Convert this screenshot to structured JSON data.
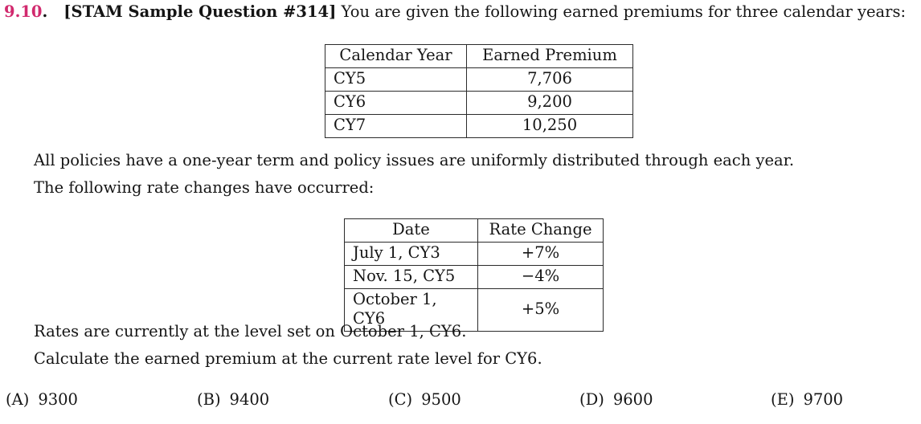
{
  "question": {
    "number": "9.10",
    "number_dot": ".",
    "source_tag": "[STAM Sample Question #314]",
    "intro": " You are given the following earned premiums for three calendar years:",
    "line_policies": "All policies have a one-year term and policy issues are uniformly distributed through each year.",
    "line_following": "The following rate changes have occurred:",
    "line_rates": "Rates are currently at the level set on October 1, CY6.",
    "line_calculate": "Calculate the earned premium at the current rate level for CY6."
  },
  "tables": {
    "earned_premiums": {
      "headers": [
        "Calendar Year",
        "Earned Premium"
      ],
      "rows": [
        [
          "CY5",
          "7,706"
        ],
        [
          "CY6",
          "9,200"
        ],
        [
          "CY7",
          "10,250"
        ]
      ]
    },
    "rate_changes": {
      "headers": [
        "Date",
        "Rate Change"
      ],
      "rows": [
        [
          "July 1, CY3",
          "+7%"
        ],
        [
          "Nov. 15, CY5",
          "−4%"
        ],
        [
          "October 1, CY6",
          "+5%"
        ]
      ]
    }
  },
  "choices": [
    {
      "label": "(A)",
      "value": "9300"
    },
    {
      "label": "(B)",
      "value": "9400"
    },
    {
      "label": "(C)",
      "value": "9500"
    },
    {
      "label": "(D)",
      "value": "9600"
    },
    {
      "label": "(E)",
      "value": "9700"
    }
  ],
  "colors": {
    "question_number": "#d12a6e",
    "text": "#151515",
    "table_border": "#2b2b2b",
    "background": "#ffffff"
  }
}
